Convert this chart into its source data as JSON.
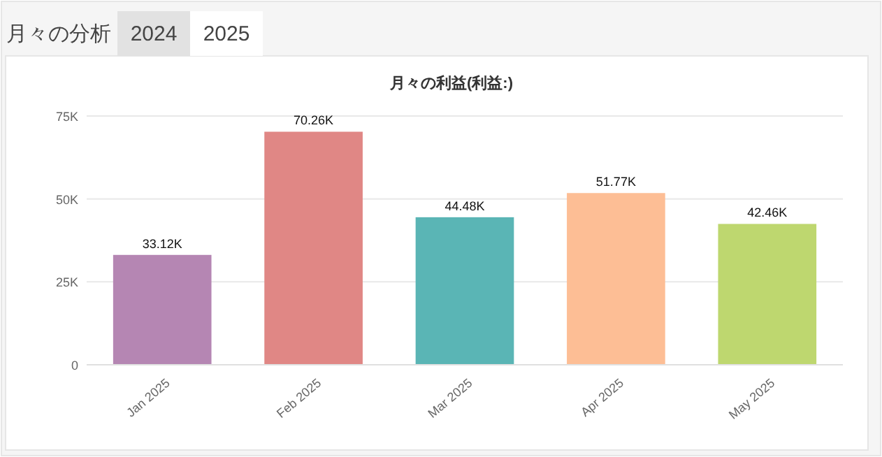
{
  "chart_data": {
    "type": "bar",
    "title": "月々の利益(利益:)",
    "annotations": [
      "月々の分析",
      "2024",
      "2025"
    ],
    "categories": [
      "Jan 2025",
      "Feb 2025",
      "Mar 2025",
      "Apr 2025",
      "May 2025"
    ],
    "values": [
      33120,
      70260,
      44480,
      51770,
      42460
    ],
    "colors": [
      "#b586b3",
      "#e08785",
      "#5ab5b5",
      "#fdbe95",
      "#bed76f"
    ],
    "value_labels": [
      "33.12K",
      "70.26K",
      "44.48K",
      "51.77K",
      "42.46K"
    ],
    "ylim": [
      0,
      75000
    ],
    "yticks": [
      {
        "value": 0,
        "label": "0"
      },
      {
        "value": 25000,
        "label": "25K"
      },
      {
        "value": 50000,
        "label": "50K"
      },
      {
        "value": 75000,
        "label": "75K"
      }
    ],
    "grid": "y"
  }
}
